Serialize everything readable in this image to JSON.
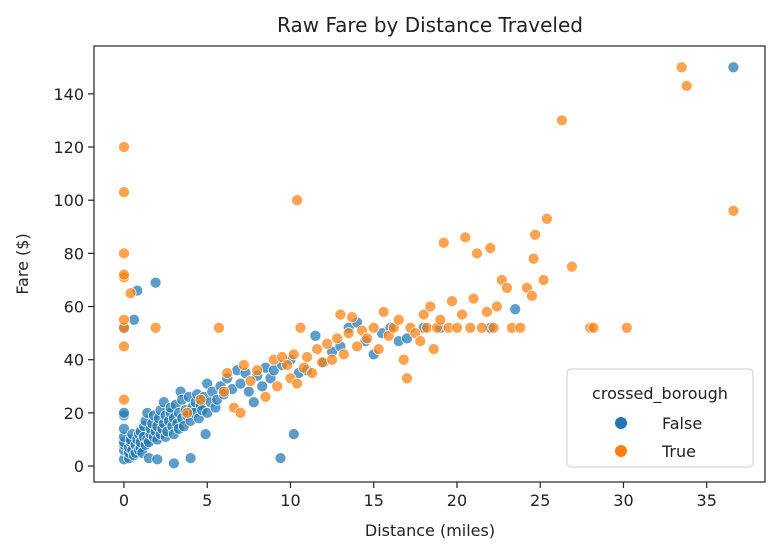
{
  "chart_data": {
    "type": "scatter",
    "title": "Raw Fare by Distance Traveled",
    "xlabel": "Distance (miles)",
    "ylabel": "Fare ($)",
    "xlim": [
      -1.8,
      38.5
    ],
    "ylim": [
      -6,
      158
    ],
    "xticks": [
      0,
      5,
      10,
      15,
      20,
      25,
      30,
      35
    ],
    "yticks": [
      0,
      20,
      40,
      60,
      80,
      100,
      120,
      140
    ],
    "grid": false,
    "legend": {
      "title": "crossed_borough",
      "placement": "bottom-right"
    },
    "series": [
      {
        "name": "False",
        "color": "#1f77b4",
        "points": [
          [
            0,
            2.5
          ],
          [
            0,
            6
          ],
          [
            0,
            8
          ],
          [
            0,
            9
          ],
          [
            0,
            11
          ],
          [
            0,
            14
          ],
          [
            0,
            19
          ],
          [
            0,
            20
          ],
          [
            0,
            52
          ],
          [
            0.3,
            3
          ],
          [
            0.3,
            5
          ],
          [
            0.3,
            7
          ],
          [
            0.4,
            9
          ],
          [
            0.4,
            10
          ],
          [
            0.5,
            6
          ],
          [
            0.5,
            12
          ],
          [
            0.6,
            4
          ],
          [
            0.6,
            55
          ],
          [
            0.7,
            5
          ],
          [
            0.7,
            8
          ],
          [
            0.8,
            10
          ],
          [
            0.8,
            66
          ],
          [
            0.9,
            6
          ],
          [
            0.9,
            12
          ],
          [
            1.0,
            7
          ],
          [
            1.0,
            9
          ],
          [
            1.0,
            13
          ],
          [
            1.1,
            5
          ],
          [
            1.2,
            11
          ],
          [
            1.2,
            15
          ],
          [
            1.3,
            8
          ],
          [
            1.3,
            17
          ],
          [
            1.4,
            10
          ],
          [
            1.4,
            20
          ],
          [
            1.5,
            9
          ],
          [
            1.5,
            3
          ],
          [
            1.6,
            12
          ],
          [
            1.6,
            14
          ],
          [
            1.7,
            16
          ],
          [
            1.8,
            11
          ],
          [
            1.8,
            19
          ],
          [
            1.9,
            13
          ],
          [
            1.9,
            69
          ],
          [
            2.0,
            2.5
          ],
          [
            2.0,
            10
          ],
          [
            2.0,
            15
          ],
          [
            2.1,
            18
          ],
          [
            2.2,
            12
          ],
          [
            2.2,
            21
          ],
          [
            2.3,
            14
          ],
          [
            2.4,
            16
          ],
          [
            2.4,
            24
          ],
          [
            2.5,
            11
          ],
          [
            2.5,
            19
          ],
          [
            2.6,
            13
          ],
          [
            2.7,
            17
          ],
          [
            2.8,
            20
          ],
          [
            2.8,
            22
          ],
          [
            2.9,
            15
          ],
          [
            3.0,
            12
          ],
          [
            3.0,
            18
          ],
          [
            3.0,
            1
          ],
          [
            3.1,
            23
          ],
          [
            3.2,
            16
          ],
          [
            3.3,
            14
          ],
          [
            3.3,
            20
          ],
          [
            3.4,
            28
          ],
          [
            3.5,
            18
          ],
          [
            3.5,
            25
          ],
          [
            3.6,
            15
          ],
          [
            3.7,
            21
          ],
          [
            3.8,
            19
          ],
          [
            3.9,
            26
          ],
          [
            4.0,
            3
          ],
          [
            4.0,
            17
          ],
          [
            4.1,
            22
          ],
          [
            4.2,
            20
          ],
          [
            4.3,
            24
          ],
          [
            4.4,
            27
          ],
          [
            4.5,
            18
          ],
          [
            4.6,
            23
          ],
          [
            4.7,
            21
          ],
          [
            4.8,
            26
          ],
          [
            4.9,
            12
          ],
          [
            5.0,
            31
          ],
          [
            5.0,
            20
          ],
          [
            5.2,
            24
          ],
          [
            5.3,
            28
          ],
          [
            5.5,
            22
          ],
          [
            5.6,
            25
          ],
          [
            5.8,
            30
          ],
          [
            6.0,
            27
          ],
          [
            6.2,
            33
          ],
          [
            6.5,
            29
          ],
          [
            6.8,
            36
          ],
          [
            7.0,
            31
          ],
          [
            7.3,
            35
          ],
          [
            7.5,
            28
          ],
          [
            7.8,
            24
          ],
          [
            8.0,
            34
          ],
          [
            8.3,
            30
          ],
          [
            8.5,
            37
          ],
          [
            8.8,
            33
          ],
          [
            9.0,
            36
          ],
          [
            9.4,
            3
          ],
          [
            9.5,
            38
          ],
          [
            10.0,
            40
          ],
          [
            10.2,
            12
          ],
          [
            10.5,
            35
          ],
          [
            11.0,
            36
          ],
          [
            11.5,
            49
          ],
          [
            12.0,
            39
          ],
          [
            12.5,
            43
          ],
          [
            13.0,
            45
          ],
          [
            13.5,
            52
          ],
          [
            14.0,
            54
          ],
          [
            14.5,
            47
          ],
          [
            15.0,
            42
          ],
          [
            15.5,
            50
          ],
          [
            16.0,
            52
          ],
          [
            16.5,
            47
          ],
          [
            17.0,
            48
          ],
          [
            18.0,
            52
          ],
          [
            19.0,
            52
          ],
          [
            22.0,
            52
          ],
          [
            23.5,
            59
          ],
          [
            36.6,
            150
          ]
        ]
      },
      {
        "name": "True",
        "color": "#ff7f0e",
        "points": [
          [
            0,
            25
          ],
          [
            0,
            45
          ],
          [
            0,
            52
          ],
          [
            0,
            55
          ],
          [
            0,
            71
          ],
          [
            0,
            72
          ],
          [
            0,
            80
          ],
          [
            0,
            103
          ],
          [
            0,
            120
          ],
          [
            0.4,
            65
          ],
          [
            1.9,
            52
          ],
          [
            3.8,
            20
          ],
          [
            4.6,
            25
          ],
          [
            5.7,
            52
          ],
          [
            6.0,
            28
          ],
          [
            6.2,
            35
          ],
          [
            6.6,
            22
          ],
          [
            7.0,
            20
          ],
          [
            7.2,
            38
          ],
          [
            7.6,
            32
          ],
          [
            8.0,
            36
          ],
          [
            8.5,
            26
          ],
          [
            9.0,
            40
          ],
          [
            9.2,
            30
          ],
          [
            9.5,
            41
          ],
          [
            9.8,
            38
          ],
          [
            10.0,
            33
          ],
          [
            10.2,
            42
          ],
          [
            10.4,
            31
          ],
          [
            10.4,
            100
          ],
          [
            10.6,
            52
          ],
          [
            10.8,
            37
          ],
          [
            11.0,
            41
          ],
          [
            11.3,
            35
          ],
          [
            11.6,
            44
          ],
          [
            11.9,
            39
          ],
          [
            12.2,
            46
          ],
          [
            12.5,
            40
          ],
          [
            12.8,
            48
          ],
          [
            13.0,
            57
          ],
          [
            13.2,
            42
          ],
          [
            13.5,
            50
          ],
          [
            13.7,
            56
          ],
          [
            14.0,
            45
          ],
          [
            14.3,
            51
          ],
          [
            14.6,
            48
          ],
          [
            15.0,
            52
          ],
          [
            15.3,
            44
          ],
          [
            15.6,
            58
          ],
          [
            15.9,
            49
          ],
          [
            16.2,
            52
          ],
          [
            16.5,
            55
          ],
          [
            16.8,
            40
          ],
          [
            17.0,
            33
          ],
          [
            17.2,
            52
          ],
          [
            17.5,
            50
          ],
          [
            17.8,
            47
          ],
          [
            18.0,
            57
          ],
          [
            18.2,
            52
          ],
          [
            18.4,
            60
          ],
          [
            18.6,
            44
          ],
          [
            18.8,
            52
          ],
          [
            19.0,
            55
          ],
          [
            19.2,
            84
          ],
          [
            19.5,
            52
          ],
          [
            19.7,
            62
          ],
          [
            20.0,
            52
          ],
          [
            20.3,
            57
          ],
          [
            20.5,
            86
          ],
          [
            20.8,
            52
          ],
          [
            21.0,
            63
          ],
          [
            21.2,
            80
          ],
          [
            21.5,
            52
          ],
          [
            21.8,
            58
          ],
          [
            22.0,
            82
          ],
          [
            22.2,
            52
          ],
          [
            22.4,
            60
          ],
          [
            22.7,
            70
          ],
          [
            23.0,
            67
          ],
          [
            23.3,
            52
          ],
          [
            23.8,
            52
          ],
          [
            24.2,
            67
          ],
          [
            24.5,
            64
          ],
          [
            24.6,
            78
          ],
          [
            24.7,
            87
          ],
          [
            25.2,
            70
          ],
          [
            25.4,
            93
          ],
          [
            26.3,
            130
          ],
          [
            26.9,
            75
          ],
          [
            28.0,
            52
          ],
          [
            28.2,
            52
          ],
          [
            30.2,
            52
          ],
          [
            33.5,
            150
          ],
          [
            33.8,
            143
          ],
          [
            36.6,
            96
          ]
        ]
      }
    ]
  }
}
